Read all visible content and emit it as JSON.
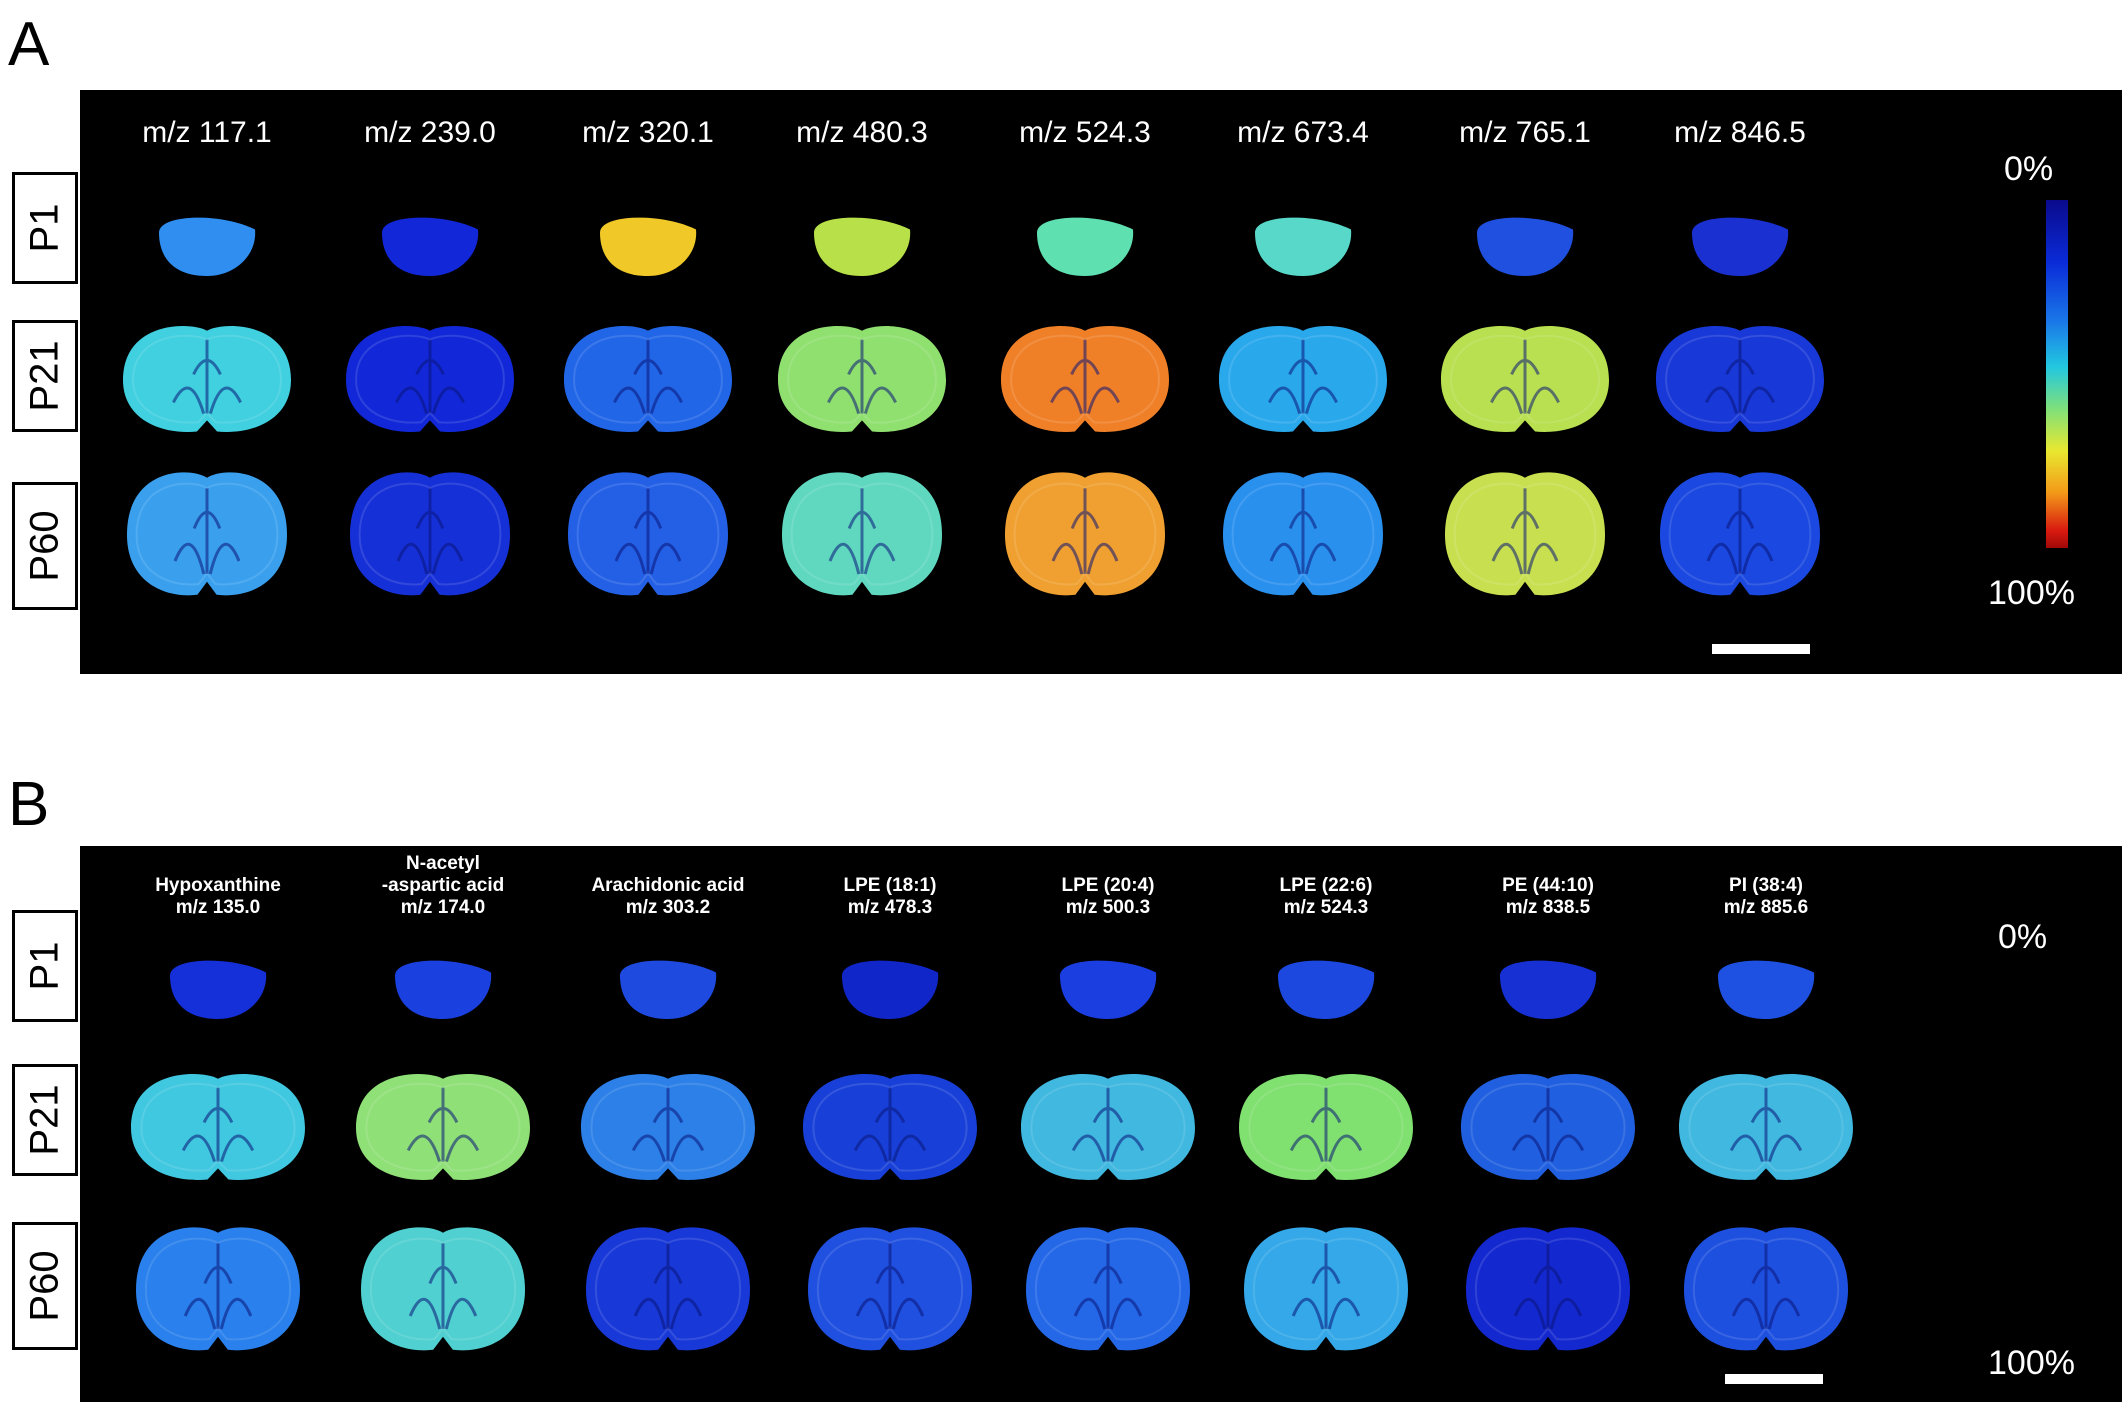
{
  "panels": [
    {
      "letter": "A",
      "columns": [
        {
          "line1": "m/z 117.1",
          "line2": ""
        },
        {
          "line1": "m/z 239.0",
          "line2": ""
        },
        {
          "line1": "m/z 320.1",
          "line2": ""
        },
        {
          "line1": "m/z 480.3",
          "line2": ""
        },
        {
          "line1": "m/z 524.3",
          "line2": ""
        },
        {
          "line1": "m/z 673.4",
          "line2": ""
        },
        {
          "line1": "m/z 765.1",
          "line2": ""
        },
        {
          "line1": "m/z 846.5",
          "line2": ""
        }
      ],
      "rows": [
        "P1",
        "P21",
        "P60"
      ],
      "colorbar": {
        "top": "0%",
        "bottom": "100%"
      },
      "colors": [
        [
          "#2f8ef0",
          "#1228d8",
          "#f0c828",
          "#b8e048",
          "#5ee0b0",
          "#58d8c8",
          "#2050e0",
          "#1a30d0"
        ],
        [
          "#40d0e0",
          "#1228d8",
          "#2266e8",
          "#90e070",
          "#f08028",
          "#2aa8ec",
          "#b8e050",
          "#1838d8"
        ],
        [
          "#3aa0ee",
          "#1630d8",
          "#2460e6",
          "#60d8c0",
          "#f0a030",
          "#2a90ee",
          "#c8e050",
          "#1a48e0"
        ]
      ]
    },
    {
      "letter": "B",
      "columns": [
        {
          "line1": "Hypoxanthine",
          "line2": "m/z 135.0"
        },
        {
          "line1": "N-acetyl",
          "line2": "-aspartic acid",
          "line3": "m/z 174.0"
        },
        {
          "line1": "Arachidonic acid",
          "line2": "m/z 303.2"
        },
        {
          "line1": "LPE (18:1)",
          "line2": "m/z 478.3"
        },
        {
          "line1": "LPE (20:4)",
          "line2": "m/z 500.3"
        },
        {
          "line1": "LPE (22:6)",
          "line2": "m/z 524.3"
        },
        {
          "line1": "PE (44:10)",
          "line2": "m/z 838.5"
        },
        {
          "line1": "PI (38:4)",
          "line2": "m/z 885.6"
        }
      ],
      "rows": [
        "P1",
        "P21",
        "P60"
      ],
      "colorbar": {
        "top": "0%",
        "bottom": "100%"
      },
      "colors": [
        [
          "#1530d8",
          "#1a40e0",
          "#1e4ae0",
          "#1026c8",
          "#1a3ee0",
          "#1c48e0",
          "#1630d4",
          "#1e50e2"
        ],
        [
          "#40c8e0",
          "#90e078",
          "#2c80e8",
          "#1840d8",
          "#40b8e0",
          "#80e070",
          "#2060e0",
          "#40b8e0"
        ],
        [
          "#2a80ec",
          "#50d0d0",
          "#1838d8",
          "#2050e0",
          "#2468e8",
          "#34a8e8",
          "#1428d0",
          "#1e50e0"
        ]
      ]
    }
  ]
}
